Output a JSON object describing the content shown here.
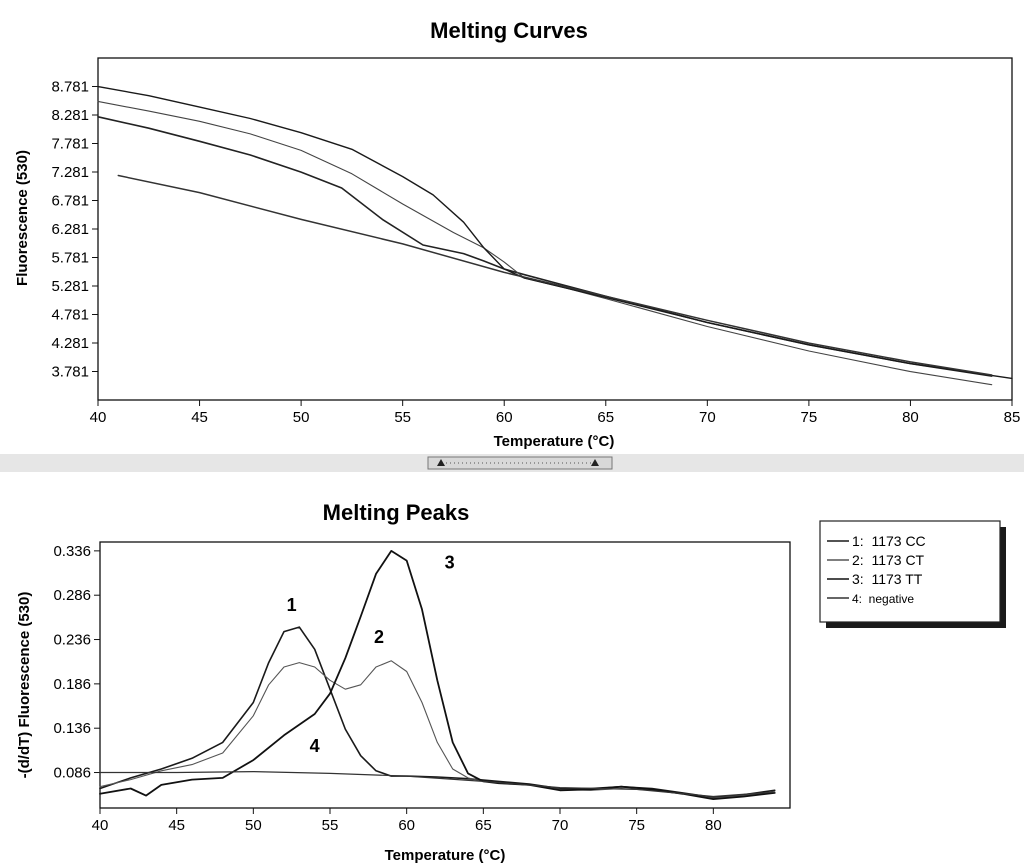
{
  "chart_data": [
    {
      "type": "line",
      "title": "Melting Curves",
      "xlabel": "Temperature (°C)",
      "ylabel": "Fluorescence (530)",
      "xlim": [
        40,
        85
      ],
      "ylim": [
        3.281,
        9.281
      ],
      "xticks": [
        40,
        45,
        50,
        55,
        60,
        65,
        70,
        75,
        80,
        85
      ],
      "yticks": [
        3.781,
        4.281,
        4.781,
        5.281,
        5.781,
        6.281,
        6.781,
        7.281,
        7.781,
        8.281,
        8.781
      ],
      "ytick_labels": [
        "3.781",
        "4.281",
        "4.781",
        "5.281",
        "5.781",
        "6.281",
        "6.781",
        "7.281",
        "7.781",
        "8.281",
        "8.781"
      ],
      "grid": false,
      "series": [
        {
          "color": "#222222",
          "x": [
            40,
            42.5,
            45,
            47.5,
            50,
            52,
            54,
            56,
            58,
            59,
            60,
            61,
            63,
            65,
            70,
            75,
            80,
            84
          ],
          "y": [
            8.25,
            8.05,
            7.82,
            7.58,
            7.28,
            7.0,
            6.45,
            6.0,
            5.85,
            5.72,
            5.58,
            5.48,
            5.29,
            5.1,
            4.64,
            4.25,
            3.92,
            3.7
          ]
        },
        {
          "color": "#444444",
          "x": [
            40,
            42.5,
            45,
            47.5,
            50,
            52.5,
            55,
            57.5,
            59,
            60,
            61,
            63,
            65,
            70,
            75,
            80,
            84
          ],
          "y": [
            8.52,
            8.35,
            8.17,
            7.95,
            7.66,
            7.25,
            6.72,
            6.22,
            5.95,
            5.7,
            5.42,
            5.25,
            5.06,
            4.57,
            4.14,
            3.78,
            3.55
          ]
        },
        {
          "color": "#1a1a1a",
          "x": [
            40,
            42.5,
            45,
            47.5,
            50,
            52.5,
            55,
            56.5,
            58,
            59,
            60,
            61,
            63,
            65,
            70,
            75,
            80,
            85
          ],
          "y": [
            8.78,
            8.62,
            8.42,
            8.22,
            7.97,
            7.68,
            7.2,
            6.88,
            6.4,
            5.95,
            5.58,
            5.42,
            5.25,
            5.08,
            4.64,
            4.25,
            3.92,
            3.66
          ]
        },
        {
          "color": "#333333",
          "x": [
            41,
            45,
            50,
            55,
            60,
            65,
            70,
            75,
            80,
            84
          ],
          "y": [
            7.22,
            6.92,
            6.45,
            6.02,
            5.52,
            5.1,
            4.68,
            4.28,
            3.95,
            3.72
          ]
        }
      ]
    },
    {
      "type": "line",
      "title": "Melting Peaks",
      "xlabel": "Temperature (°C)",
      "ylabel": "-(d/dT) Fluorescence (530)",
      "xlim": [
        40,
        85
      ],
      "ylim": [
        0.046,
        0.346
      ],
      "xticks": [
        40,
        45,
        50,
        55,
        60,
        65,
        70,
        75,
        80
      ],
      "yticks": [
        0.086,
        0.136,
        0.186,
        0.236,
        0.286,
        0.336
      ],
      "ytick_labels": [
        "0.086",
        "0.136",
        "0.186",
        "0.236",
        "0.286",
        "0.336"
      ],
      "grid": false,
      "legend_position": "right",
      "series": [
        {
          "name": "1:  1173 CC",
          "color": "#1a1a1a",
          "x": [
            40,
            42,
            44,
            46,
            48,
            50,
            51,
            52,
            53,
            54,
            55,
            56,
            57,
            58,
            59,
            60,
            62,
            64,
            66,
            68,
            70,
            72,
            74,
            76,
            78,
            80,
            82,
            84
          ],
          "y": [
            0.068,
            0.08,
            0.09,
            0.102,
            0.12,
            0.165,
            0.21,
            0.245,
            0.25,
            0.225,
            0.18,
            0.135,
            0.105,
            0.088,
            0.082,
            0.082,
            0.081,
            0.079,
            0.076,
            0.073,
            0.068,
            0.068,
            0.07,
            0.068,
            0.063,
            0.058,
            0.061,
            0.066
          ]
        },
        {
          "name": "2:  1173 CT",
          "color": "#555555",
          "x": [
            40,
            42,
            44,
            46,
            48,
            50,
            51,
            52,
            53,
            54,
            55,
            56,
            57,
            58,
            59,
            60,
            61,
            62,
            63,
            64,
            65,
            66,
            68,
            70,
            72,
            74,
            76,
            78,
            80,
            82,
            84
          ],
          "y": [
            0.07,
            0.078,
            0.088,
            0.095,
            0.108,
            0.15,
            0.185,
            0.205,
            0.21,
            0.205,
            0.19,
            0.18,
            0.185,
            0.205,
            0.212,
            0.2,
            0.165,
            0.12,
            0.09,
            0.08,
            0.076,
            0.074,
            0.072,
            0.067,
            0.066,
            0.068,
            0.066,
            0.062,
            0.057,
            0.06,
            0.064
          ]
        },
        {
          "name": "3:  1173 TT",
          "color": "#111111",
          "x": [
            40,
            42,
            43,
            44,
            46,
            48,
            50,
            52,
            54,
            55,
            56,
            57,
            58,
            59,
            60,
            61,
            62,
            63,
            64,
            65,
            66,
            68,
            70,
            72,
            74,
            76,
            78,
            80,
            82,
            84
          ],
          "y": [
            0.062,
            0.068,
            0.06,
            0.072,
            0.078,
            0.08,
            0.1,
            0.128,
            0.152,
            0.175,
            0.215,
            0.262,
            0.31,
            0.336,
            0.325,
            0.27,
            0.19,
            0.12,
            0.085,
            0.076,
            0.074,
            0.072,
            0.066,
            0.067,
            0.07,
            0.067,
            0.062,
            0.056,
            0.059,
            0.063
          ]
        },
        {
          "name": "4:  negative",
          "color": "#333333",
          "x": [
            40,
            45,
            50,
            55,
            60,
            65,
            70,
            75,
            80,
            84
          ],
          "y": [
            0.086,
            0.086,
            0.087,
            0.085,
            0.082,
            0.076,
            0.069,
            0.067,
            0.059,
            0.064
          ]
        }
      ],
      "annotations": [
        {
          "text": "1",
          "x": 52.5,
          "y": 0.268
        },
        {
          "text": "2",
          "x": 58.2,
          "y": 0.232
        },
        {
          "text": "3",
          "x": 62.8,
          "y": 0.316
        },
        {
          "text": "4",
          "x": 54.0,
          "y": 0.109
        }
      ]
    }
  ]
}
